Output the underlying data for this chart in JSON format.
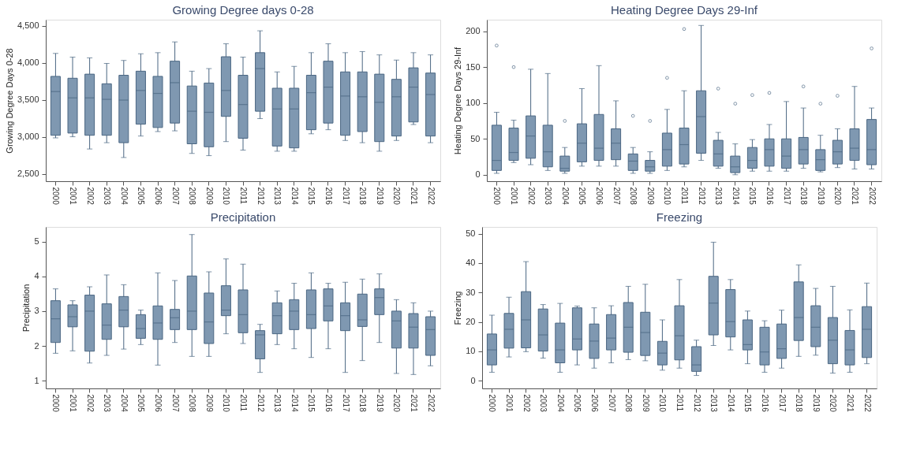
{
  "chart_data": [
    {
      "type": "box",
      "title": "Growing Degree days 0-28",
      "ylabel": "Growing Degree Days 0-28",
      "color": "#7f98b1",
      "categories": [
        "2000",
        "2001",
        "2002",
        "2003",
        "2004",
        "2005",
        "2006",
        "2007",
        "2008",
        "2009",
        "2010",
        "2011",
        "2012",
        "2013",
        "2014",
        "2015",
        "2016",
        "2017",
        "2018",
        "2019",
        "2020",
        "2021",
        "2022"
      ],
      "ylim": [
        2400,
        4580
      ],
      "yticks": [
        {
          "value": 2500,
          "label": "2,500"
        },
        {
          "value": 3000,
          "label": "3,000"
        },
        {
          "value": 3500,
          "label": "3,500"
        },
        {
          "value": 4000,
          "label": "4,000"
        },
        {
          "value": 4500,
          "label": "4,500"
        }
      ],
      "grid": false,
      "boxes": [
        {
          "low": 2985,
          "q1": 3020,
          "median": 3610,
          "q3": 3815,
          "high": 4125
        },
        {
          "low": 3000,
          "q1": 3050,
          "median": 3525,
          "q3": 3790,
          "high": 4075
        },
        {
          "low": 2835,
          "q1": 3020,
          "median": 3525,
          "q3": 3845,
          "high": 4065
        },
        {
          "low": 2920,
          "q1": 3020,
          "median": 3505,
          "q3": 3715,
          "high": 3990
        },
        {
          "low": 2720,
          "q1": 2920,
          "median": 3495,
          "q3": 3830,
          "high": 4030
        },
        {
          "low": 3010,
          "q1": 3170,
          "median": 3625,
          "q3": 3885,
          "high": 4120
        },
        {
          "low": 3070,
          "q1": 3125,
          "median": 3585,
          "q3": 3815,
          "high": 4135
        },
        {
          "low": 3080,
          "q1": 3185,
          "median": 3730,
          "q3": 4020,
          "high": 4280
        },
        {
          "low": 2775,
          "q1": 2905,
          "median": 3345,
          "q3": 3685,
          "high": 3885
        },
        {
          "low": 2745,
          "q1": 2865,
          "median": 3330,
          "q3": 3725,
          "high": 3920
        },
        {
          "low": 2935,
          "q1": 3275,
          "median": 3625,
          "q3": 4080,
          "high": 4255
        },
        {
          "low": 2820,
          "q1": 2980,
          "median": 3435,
          "q3": 3830,
          "high": 4075
        },
        {
          "low": 3245,
          "q1": 3345,
          "median": 3920,
          "q3": 4135,
          "high": 4430
        },
        {
          "low": 2805,
          "q1": 2875,
          "median": 3375,
          "q3": 3655,
          "high": 3875
        },
        {
          "low": 2805,
          "q1": 2850,
          "median": 3375,
          "q3": 3655,
          "high": 3950
        },
        {
          "low": 3040,
          "q1": 3095,
          "median": 3595,
          "q3": 3830,
          "high": 4135
        },
        {
          "low": 3095,
          "q1": 3185,
          "median": 3670,
          "q3": 4020,
          "high": 4255
        },
        {
          "low": 2950,
          "q1": 3020,
          "median": 3550,
          "q3": 3875,
          "high": 4135
        },
        {
          "low": 2920,
          "q1": 3070,
          "median": 3540,
          "q3": 3875,
          "high": 4150
        },
        {
          "low": 2805,
          "q1": 2935,
          "median": 3465,
          "q3": 3845,
          "high": 4105
        },
        {
          "low": 2950,
          "q1": 3010,
          "median": 3540,
          "q3": 3775,
          "high": 4035
        },
        {
          "low": 3165,
          "q1": 3200,
          "median": 3670,
          "q3": 3930,
          "high": 4135
        },
        {
          "low": 2920,
          "q1": 3010,
          "median": 3570,
          "q3": 3860,
          "high": 4105
        }
      ]
    },
    {
      "type": "box",
      "title": "Heating Degree Days 29-Inf",
      "ylabel": "Heating Degree Days 29-Inf",
      "color": "#7f98b1",
      "categories": [
        "2000",
        "2001",
        "2002",
        "2003",
        "2004",
        "2005",
        "2006",
        "2007",
        "2008",
        "2009",
        "2010",
        "2011",
        "2012",
        "2013",
        "2014",
        "2015",
        "2016",
        "2017",
        "2018",
        "2019",
        "2020",
        "2021",
        "2022"
      ],
      "ylim": [
        -9,
        216
      ],
      "yticks": [
        0,
        50,
        100,
        150,
        200
      ],
      "grid": false,
      "boxes": [
        {
          "low": 2,
          "q1": 6,
          "median": 20,
          "q3": 69,
          "high": 87,
          "outliers": [
            180
          ]
        },
        {
          "low": 17,
          "q1": 20,
          "median": 31,
          "q3": 65,
          "high": 76,
          "outliers": [
            150
          ]
        },
        {
          "low": 14,
          "q1": 23,
          "median": 54,
          "q3": 82,
          "high": 147
        },
        {
          "low": 6,
          "q1": 11,
          "median": 32,
          "q3": 69,
          "high": 141
        },
        {
          "low": 2,
          "q1": 5,
          "median": 9,
          "q3": 26,
          "high": 38,
          "outliers": [
            75
          ]
        },
        {
          "low": 12,
          "q1": 18,
          "median": 44,
          "q3": 71,
          "high": 120
        },
        {
          "low": 12,
          "q1": 20,
          "median": 37,
          "q3": 84,
          "high": 152
        },
        {
          "low": 12,
          "q1": 21,
          "median": 44,
          "q3": 64,
          "high": 103
        },
        {
          "low": 2,
          "q1": 6,
          "median": 19,
          "q3": 29,
          "high": 38,
          "outliers": [
            82
          ]
        },
        {
          "low": 2,
          "q1": 5,
          "median": 11,
          "q3": 20,
          "high": 32,
          "outliers": [
            75
          ]
        },
        {
          "low": 6,
          "q1": 12,
          "median": 35,
          "q3": 58,
          "high": 91,
          "outliers": [
            135
          ]
        },
        {
          "low": 11,
          "q1": 15,
          "median": 42,
          "q3": 65,
          "high": 117,
          "outliers": [
            203
          ]
        },
        {
          "low": 20,
          "q1": 30,
          "median": 81,
          "q3": 117,
          "high": 208
        },
        {
          "low": 9,
          "q1": 12,
          "median": 29,
          "q3": 48,
          "high": 59,
          "outliers": [
            120
          ]
        },
        {
          "low": 0,
          "q1": 3,
          "median": 11,
          "q3": 26,
          "high": 43,
          "outliers": [
            99
          ]
        },
        {
          "low": 5,
          "q1": 9,
          "median": 20,
          "q3": 38,
          "high": 49,
          "outliers": [
            111
          ]
        },
        {
          "low": 5,
          "q1": 12,
          "median": 35,
          "q3": 50,
          "high": 70,
          "outliers": [
            114
          ]
        },
        {
          "low": 5,
          "q1": 9,
          "median": 26,
          "q3": 50,
          "high": 102
        },
        {
          "low": 9,
          "q1": 15,
          "median": 35,
          "q3": 52,
          "high": 93,
          "outliers": [
            123
          ]
        },
        {
          "low": 4,
          "q1": 6,
          "median": 21,
          "q3": 35,
          "high": 55,
          "outliers": [
            99
          ]
        },
        {
          "low": 10,
          "q1": 15,
          "median": 32,
          "q3": 48,
          "high": 64,
          "outliers": [
            110
          ]
        },
        {
          "low": 8,
          "q1": 20,
          "median": 37,
          "q3": 64,
          "high": 123
        },
        {
          "low": 8,
          "q1": 14,
          "median": 35,
          "q3": 77,
          "high": 93,
          "outliers": [
            176
          ]
        }
      ]
    },
    {
      "type": "box",
      "title": "Precipitation",
      "ylabel": "Precipitation",
      "color": "#7f98b1",
      "categories": [
        "2000",
        "2001",
        "2002",
        "2003",
        "2004",
        "2005",
        "2006",
        "2007",
        "2008",
        "2009",
        "2010",
        "2011",
        "2012",
        "2013",
        "2014",
        "2015",
        "2016",
        "2017",
        "2018",
        "2019",
        "2020",
        "2021",
        "2022"
      ],
      "ylim": [
        0.78,
        5.42
      ],
      "yticks": [
        1,
        2,
        3,
        4,
        5
      ],
      "grid": false,
      "boxes": [
        {
          "low": 1.79,
          "q1": 2.1,
          "median": 2.78,
          "q3": 3.3,
          "high": 3.64
        },
        {
          "low": 1.86,
          "q1": 2.55,
          "median": 2.84,
          "q3": 3.18,
          "high": 3.3
        },
        {
          "low": 1.51,
          "q1": 1.85,
          "median": 3.0,
          "q3": 3.46,
          "high": 3.7
        },
        {
          "low": 1.73,
          "q1": 2.19,
          "median": 2.6,
          "q3": 3.21,
          "high": 4.04
        },
        {
          "low": 1.91,
          "q1": 2.55,
          "median": 3.03,
          "q3": 3.42,
          "high": 3.76
        },
        {
          "low": 2.04,
          "q1": 2.22,
          "median": 2.5,
          "q3": 2.9,
          "high": 3.03
        },
        {
          "low": 1.45,
          "q1": 2.19,
          "median": 2.66,
          "q3": 3.15,
          "high": 4.1
        },
        {
          "low": 2.1,
          "q1": 2.47,
          "median": 2.81,
          "q3": 3.05,
          "high": 3.88
        },
        {
          "low": 1.7,
          "q1": 2.47,
          "median": 3.0,
          "q3": 4.01,
          "high": 5.2
        },
        {
          "low": 1.7,
          "q1": 2.07,
          "median": 2.69,
          "q3": 3.52,
          "high": 4.13
        },
        {
          "low": 2.35,
          "q1": 2.87,
          "median": 3.03,
          "q3": 3.73,
          "high": 4.5
        },
        {
          "low": 2.07,
          "q1": 2.38,
          "median": 2.9,
          "q3": 3.61,
          "high": 4.35
        },
        {
          "low": 1.24,
          "q1": 1.63,
          "median": 2.32,
          "q3": 2.44,
          "high": 2.62
        },
        {
          "low": 2.04,
          "q1": 2.35,
          "median": 2.87,
          "q3": 3.24,
          "high": 3.58
        },
        {
          "low": 1.92,
          "q1": 2.47,
          "median": 3.0,
          "q3": 3.33,
          "high": 3.8
        },
        {
          "low": 1.67,
          "q1": 2.5,
          "median": 2.9,
          "q3": 3.61,
          "high": 4.1
        },
        {
          "low": 1.92,
          "q1": 2.72,
          "median": 3.15,
          "q3": 3.64,
          "high": 3.8
        },
        {
          "low": 1.24,
          "q1": 2.44,
          "median": 2.87,
          "q3": 3.24,
          "high": 3.83
        },
        {
          "low": 1.58,
          "q1": 2.56,
          "median": 2.75,
          "q3": 3.49,
          "high": 3.92
        },
        {
          "low": 2.1,
          "q1": 2.9,
          "median": 3.39,
          "q3": 3.64,
          "high": 4.07
        },
        {
          "low": 1.21,
          "q1": 1.94,
          "median": 2.72,
          "q3": 3.0,
          "high": 3.33
        },
        {
          "low": 1.18,
          "q1": 1.94,
          "median": 2.54,
          "q3": 2.93,
          "high": 3.24
        },
        {
          "low": 1.43,
          "q1": 1.73,
          "median": 2.47,
          "q3": 2.84,
          "high": 3.0
        }
      ]
    },
    {
      "type": "box",
      "title": "Freezing",
      "ylabel": "Freezing",
      "color": "#7f98b1",
      "categories": [
        "2000",
        "2001",
        "2002",
        "2003",
        "2004",
        "2005",
        "2006",
        "2007",
        "2008",
        "2009",
        "2010",
        "2011",
        "2012",
        "2013",
        "2014",
        "2015",
        "2016",
        "2017",
        "2018",
        "2019",
        "2020",
        "2021",
        "2022"
      ],
      "ylim": [
        -2.6,
        52.3
      ],
      "yticks": [
        0,
        10,
        20,
        30,
        40,
        50
      ],
      "grid": false,
      "boxes": [
        {
          "low": 2.9,
          "q1": 5.4,
          "median": 10.5,
          "q3": 15.9,
          "high": 22.3
        },
        {
          "low": 8.1,
          "q1": 11.1,
          "median": 17.5,
          "q3": 22.9,
          "high": 28.4
        },
        {
          "low": 9.9,
          "q1": 11.2,
          "median": 20.7,
          "q3": 30.3,
          "high": 40.5
        },
        {
          "low": 7.7,
          "q1": 10.1,
          "median": 15.6,
          "q3": 24.4,
          "high": 25.9
        },
        {
          "low": 2.9,
          "q1": 6.1,
          "median": 10.5,
          "q3": 19.6,
          "high": 26.3
        },
        {
          "low": 5.4,
          "q1": 10.5,
          "median": 14.2,
          "q3": 24.8,
          "high": 25.4
        },
        {
          "low": 4.3,
          "q1": 7.6,
          "median": 13.5,
          "q3": 19.3,
          "high": 24.8
        },
        {
          "low": 6.1,
          "q1": 10.5,
          "median": 14.5,
          "q3": 22.5,
          "high": 25.5
        },
        {
          "low": 7.2,
          "q1": 9.7,
          "median": 18.2,
          "q3": 26.6,
          "high": 32.1
        },
        {
          "low": 6.8,
          "q1": 8.6,
          "median": 16.4,
          "q3": 23.3,
          "high": 32.8
        },
        {
          "low": 3.6,
          "q1": 5.4,
          "median": 9.4,
          "q3": 13.4,
          "high": 20.7
        },
        {
          "low": 4.3,
          "q1": 7.1,
          "median": 15.3,
          "q3": 25.5,
          "high": 34.4
        },
        {
          "low": 1.8,
          "q1": 3.2,
          "median": 5.4,
          "q3": 11.6,
          "high": 13.8
        },
        {
          "low": 12.0,
          "q1": 15.6,
          "median": 26.4,
          "q3": 35.5,
          "high": 47.1
        },
        {
          "low": 10.5,
          "q1": 14.9,
          "median": 20.1,
          "q3": 31.0,
          "high": 34.4
        },
        {
          "low": 5.8,
          "q1": 10.5,
          "median": 12.3,
          "q3": 20.7,
          "high": 23.7
        },
        {
          "low": 2.9,
          "q1": 5.4,
          "median": 9.8,
          "q3": 18.2,
          "high": 20.4
        },
        {
          "low": 4.3,
          "q1": 7.6,
          "median": 10.9,
          "q3": 19.3,
          "high": 24.0
        },
        {
          "low": 8.3,
          "q1": 13.7,
          "median": 21.5,
          "q3": 33.6,
          "high": 39.4
        },
        {
          "low": 8.7,
          "q1": 11.6,
          "median": 18.2,
          "q3": 25.5,
          "high": 31.4
        },
        {
          "low": 2.6,
          "q1": 5.8,
          "median": 13.8,
          "q3": 21.5,
          "high": 32.1
        },
        {
          "low": 2.9,
          "q1": 5.4,
          "median": 10.5,
          "q3": 17.1,
          "high": 24.1
        },
        {
          "low": 5.8,
          "q1": 7.9,
          "median": 17.5,
          "q3": 25.2,
          "high": 33.2
        }
      ]
    }
  ]
}
